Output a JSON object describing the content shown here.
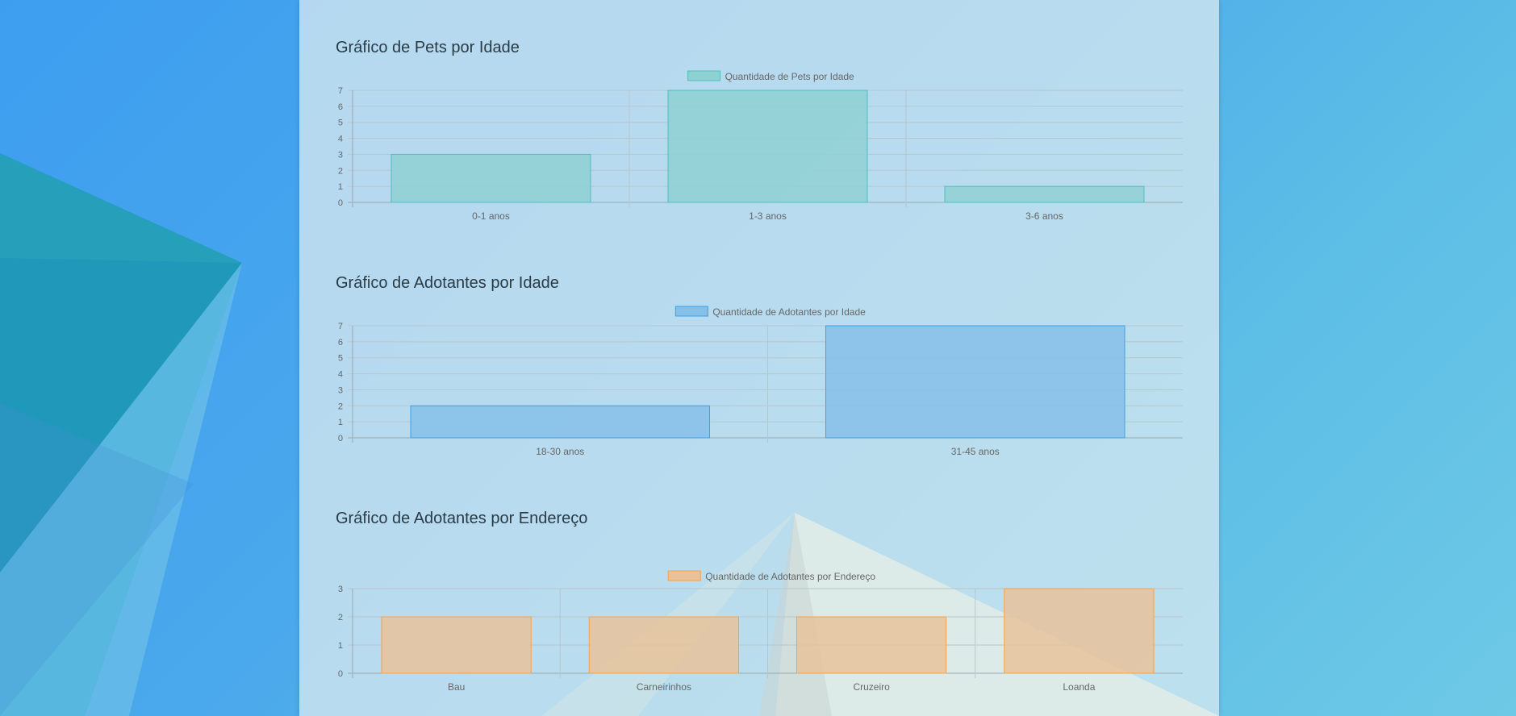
{
  "colors": {
    "pets": {
      "fill": "#8fd0d2",
      "stroke": "#4bc0c0"
    },
    "adotantes_idade": {
      "fill": "#86bfe8",
      "stroke": "#36a2eb"
    },
    "adotantes_endereco": {
      "fill": "#e8c39a",
      "stroke": "#ff9f40"
    }
  },
  "chart_data": [
    {
      "type": "bar",
      "title": "Gráfico de Pets por Idade",
      "categories": [
        "0-1 anos",
        "1-3 anos",
        "3-6 anos"
      ],
      "series": [
        {
          "name": "Quantidade de Pets por Idade",
          "values": [
            3,
            7,
            1
          ]
        }
      ],
      "ylim": [
        0,
        7
      ],
      "yticks": [
        0,
        1,
        2,
        3,
        4,
        5,
        6,
        7
      ],
      "grid": true,
      "legend": "top-center"
    },
    {
      "type": "bar",
      "title": "Gráfico de Adotantes por Idade",
      "categories": [
        "18-30 anos",
        "31-45 anos"
      ],
      "series": [
        {
          "name": "Quantidade de Adotantes por Idade",
          "values": [
            2,
            7
          ]
        }
      ],
      "ylim": [
        0,
        7
      ],
      "yticks": [
        0,
        1,
        2,
        3,
        4,
        5,
        6,
        7
      ],
      "grid": true,
      "legend": "top-center"
    },
    {
      "type": "bar",
      "title": "Gráfico de Adotantes por Endereço",
      "categories": [
        "Bau",
        "Carneirinhos",
        "Cruzeiro",
        "Loanda"
      ],
      "series": [
        {
          "name": "Quantidade de Adotantes por Endereço",
          "values": [
            2,
            2,
            2,
            3
          ]
        }
      ],
      "ylim": [
        0,
        3
      ],
      "yticks": [
        0,
        1,
        2,
        3
      ],
      "grid": true,
      "legend": "top-center"
    }
  ]
}
